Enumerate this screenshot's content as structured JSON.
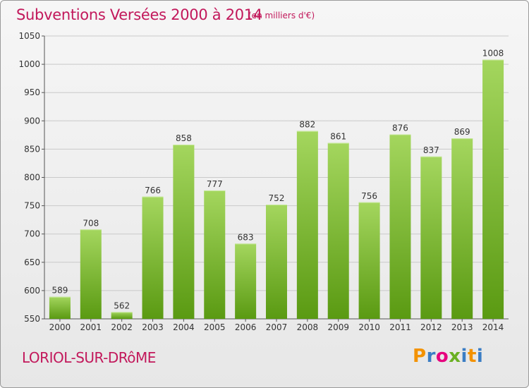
{
  "chart_data": {
    "type": "bar",
    "title": "Subventions Versées 2000 à 2014",
    "subtitle": "(en milliers d'€)",
    "categories": [
      "2000",
      "2001",
      "2002",
      "2003",
      "2004",
      "2005",
      "2006",
      "2007",
      "2008",
      "2009",
      "2010",
      "2011",
      "2012",
      "2013",
      "2014"
    ],
    "values": [
      589,
      708,
      562,
      766,
      858,
      777,
      683,
      752,
      882,
      861,
      756,
      876,
      837,
      869,
      1008
    ],
    "ylim": [
      550,
      1050
    ],
    "yticks": [
      550,
      600,
      650,
      700,
      750,
      800,
      850,
      900,
      950,
      1000,
      1050
    ],
    "grid": true,
    "bar_color": "#7ab82d"
  },
  "footer": {
    "place": "LORIOL-SUR-DRôME",
    "logo": {
      "p": "P",
      "r": "r",
      "o": "o",
      "x": "x",
      "i": "i",
      "t": "t",
      "i2": "i"
    }
  }
}
